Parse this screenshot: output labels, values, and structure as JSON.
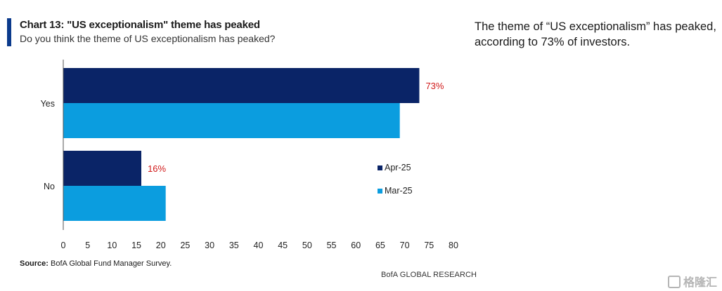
{
  "header": {
    "title": "Chart 13: \"US exceptionalism\" theme has peaked",
    "subtitle": "Do you think the theme of US exceptionalism has peaked?"
  },
  "side_note": "The theme of “US exceptionalism” has peaked, according to 73% of investors.",
  "footer": {
    "source_label": "Source:",
    "source_text": " BofA Global Fund Manager Survey.",
    "brand": "BofA GLOBAL RESEARCH",
    "watermark": "格隆汇"
  },
  "colors": {
    "apr": "#0a2467",
    "mar": "#0b9ddf",
    "label_red": "#d11a1a",
    "accent": "#0b3a8c"
  },
  "chart_data": {
    "type": "bar",
    "orientation": "horizontal",
    "categories": [
      "Yes",
      "No"
    ],
    "series": [
      {
        "name": "Apr-25",
        "values": [
          73,
          16
        ],
        "data_labels": [
          "73%",
          "16%"
        ]
      },
      {
        "name": "Mar-25",
        "values": [
          69,
          21
        ],
        "data_labels": [
          "",
          ""
        ]
      }
    ],
    "xlim": [
      0,
      80
    ],
    "xticks": [
      0,
      5,
      10,
      15,
      20,
      25,
      30,
      35,
      40,
      45,
      50,
      55,
      60,
      65,
      70,
      75,
      80
    ],
    "grid": false,
    "legend_position": "right"
  }
}
